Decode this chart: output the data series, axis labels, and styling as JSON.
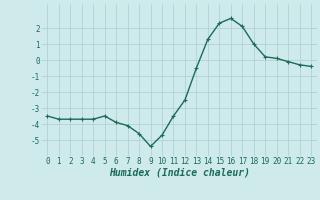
{
  "x": [
    0,
    1,
    2,
    3,
    4,
    5,
    6,
    7,
    8,
    9,
    10,
    11,
    12,
    13,
    14,
    15,
    16,
    17,
    18,
    19,
    20,
    21,
    22,
    23
  ],
  "y": [
    -3.5,
    -3.7,
    -3.7,
    -3.7,
    -3.7,
    -3.5,
    -3.9,
    -4.1,
    -4.6,
    -5.4,
    -4.7,
    -3.5,
    -2.5,
    -0.5,
    1.3,
    2.3,
    2.6,
    2.1,
    1.0,
    0.2,
    0.1,
    -0.1,
    -0.3,
    -0.4
  ],
  "line_color": "#1a6b5a",
  "marker": "+",
  "markersize": 3,
  "linewidth": 1.0,
  "xlabel": "Humidex (Indice chaleur)",
  "xlabel_fontsize": 7,
  "xlim": [
    -0.5,
    23.5
  ],
  "ylim": [
    -6,
    3.5
  ],
  "yticks": [
    -5,
    -4,
    -3,
    -2,
    -1,
    0,
    1,
    2
  ],
  "xticks": [
    0,
    1,
    2,
    3,
    4,
    5,
    6,
    7,
    8,
    9,
    10,
    11,
    12,
    13,
    14,
    15,
    16,
    17,
    18,
    19,
    20,
    21,
    22,
    23
  ],
  "bg_color": "#ceeaea",
  "grid_color": "#aacece",
  "tick_fontsize": 5.5
}
